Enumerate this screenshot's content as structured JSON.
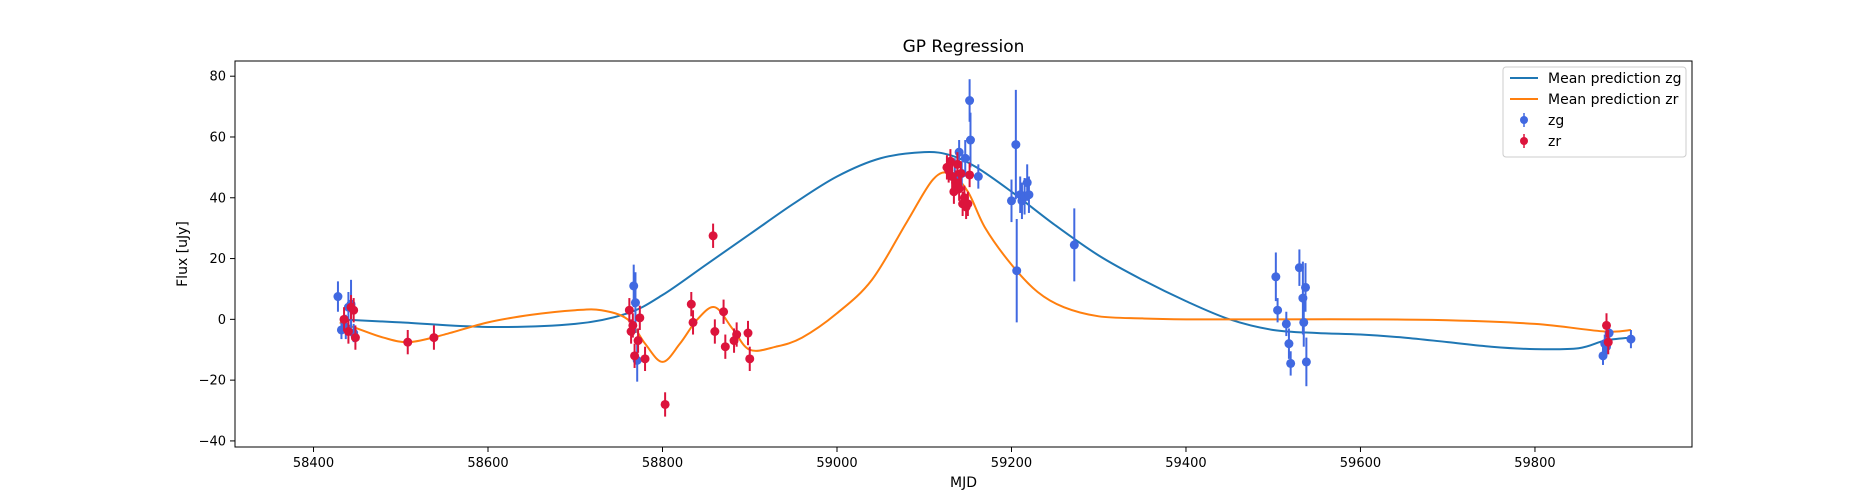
{
  "chart_data": {
    "type": "scatter",
    "title": "GP Regression",
    "xlabel": "MJD",
    "ylabel": "Flux [uJy]",
    "xlim": [
      58310,
      59980
    ],
    "ylim": [
      -42,
      85
    ],
    "x_ticks": [
      58400,
      58600,
      58800,
      59000,
      59200,
      59400,
      59600,
      59800
    ],
    "y_ticks": [
      -40,
      -20,
      0,
      20,
      40,
      60,
      80
    ],
    "grid": false,
    "legend_position": "top-right",
    "lines": [
      {
        "name": "Mean prediction zg",
        "color": "#1f77b4",
        "x": [
          58430,
          58500,
          58600,
          58700,
          58760,
          58800,
          58850,
          58900,
          58950,
          59000,
          59050,
          59100,
          59130,
          59160,
          59200,
          59250,
          59300,
          59350,
          59400,
          59450,
          59500,
          59550,
          59600,
          59650,
          59700,
          59750,
          59800,
          59850,
          59880,
          59910
        ],
        "y": [
          0,
          -1,
          -2.5,
          -1.5,
          2,
          8,
          18,
          28,
          38,
          47,
          53,
          55,
          54,
          50,
          42,
          31,
          21,
          13,
          6,
          0,
          -3.5,
          -4.5,
          -5,
          -6,
          -7.5,
          -9,
          -9.8,
          -9.5,
          -7,
          -6
        ]
      },
      {
        "name": "Mean prediction zr",
        "color": "#ff7f0e",
        "x": [
          58430,
          58450,
          58480,
          58510,
          58550,
          58600,
          58650,
          58700,
          58730,
          58760,
          58780,
          58800,
          58820,
          58840,
          58860,
          58880,
          58900,
          58930,
          58960,
          59000,
          59040,
          59080,
          59110,
          59130,
          59150,
          59170,
          59200,
          59230,
          59260,
          59300,
          59350,
          59400,
          59450,
          59500,
          59600,
          59700,
          59800,
          59880,
          59910
        ],
        "y": [
          -1,
          -3,
          -6,
          -7.5,
          -5,
          -1,
          1.5,
          3,
          3,
          0,
          -8,
          -14,
          -8,
          0,
          4,
          -3,
          -10,
          -9,
          -6,
          2,
          13,
          32,
          46,
          48,
          42,
          30,
          18,
          9,
          4,
          1,
          0.3,
          0,
          0,
          0,
          0,
          -0.3,
          -1.5,
          -4,
          -3.5
        ]
      }
    ],
    "series": [
      {
        "name": "zg",
        "color": "#4169e1",
        "x": [
          58428,
          58432,
          58437,
          58440,
          58443,
          58446,
          58767,
          58769,
          58771,
          59135,
          59140,
          59143,
          59147,
          59152,
          59153,
          59162,
          59200,
          59205,
          59206,
          59210,
          59212,
          59215,
          59218,
          59220,
          59272,
          59503,
          59505,
          59515,
          59518,
          59520,
          59530,
          59534,
          59535,
          59537,
          59538,
          59878,
          59880,
          59882,
          59885,
          59910
        ],
        "y": [
          7.5,
          -3.5,
          -2.5,
          4,
          5,
          -4.5,
          11,
          5.5,
          -13.5,
          47,
          55,
          48,
          53,
          72,
          59,
          47,
          39,
          57.5,
          16,
          41,
          39,
          40.5,
          45,
          41,
          24.5,
          14,
          3,
          -1.5,
          -8,
          -14.5,
          17,
          7,
          -1,
          10.5,
          -14,
          -12,
          -8,
          -9,
          -4.5,
          -6.5
        ],
        "err": [
          5,
          3,
          4,
          5,
          8,
          3,
          7,
          10,
          7,
          6,
          4,
          4,
          6,
          7,
          9,
          4,
          7,
          18,
          17,
          6,
          6,
          6,
          6,
          6,
          12,
          8,
          4,
          4,
          5,
          4,
          6,
          12,
          8,
          8,
          8,
          3,
          3,
          3,
          3,
          3
        ]
      },
      {
        "name": "zr",
        "color": "#dc143c",
        "x": [
          58435,
          58440,
          58443,
          58446,
          58448,
          58508,
          58538,
          58762,
          58764,
          58766,
          58768,
          58772,
          58774,
          58780,
          58803,
          58833,
          58835,
          58858,
          58860,
          58870,
          58872,
          58882,
          58885,
          58898,
          58900,
          59126,
          59128,
          59130,
          59132,
          59134,
          59136,
          59138,
          59140,
          59142,
          59144,
          59146,
          59148,
          59150,
          59152,
          59882,
          59884
        ],
        "y": [
          0,
          -4,
          4,
          3,
          -6,
          -7.5,
          -6,
          3,
          -4,
          -2,
          -12,
          -7,
          0.5,
          -13,
          -28,
          5,
          -1,
          27.5,
          -4,
          2.5,
          -9,
          -7,
          -5,
          -4.5,
          -13,
          50,
          49,
          52,
          47,
          42,
          45,
          51,
          43,
          48,
          38,
          40,
          37,
          38,
          47.5,
          -2,
          -7.5
        ]
      }
    ]
  }
}
